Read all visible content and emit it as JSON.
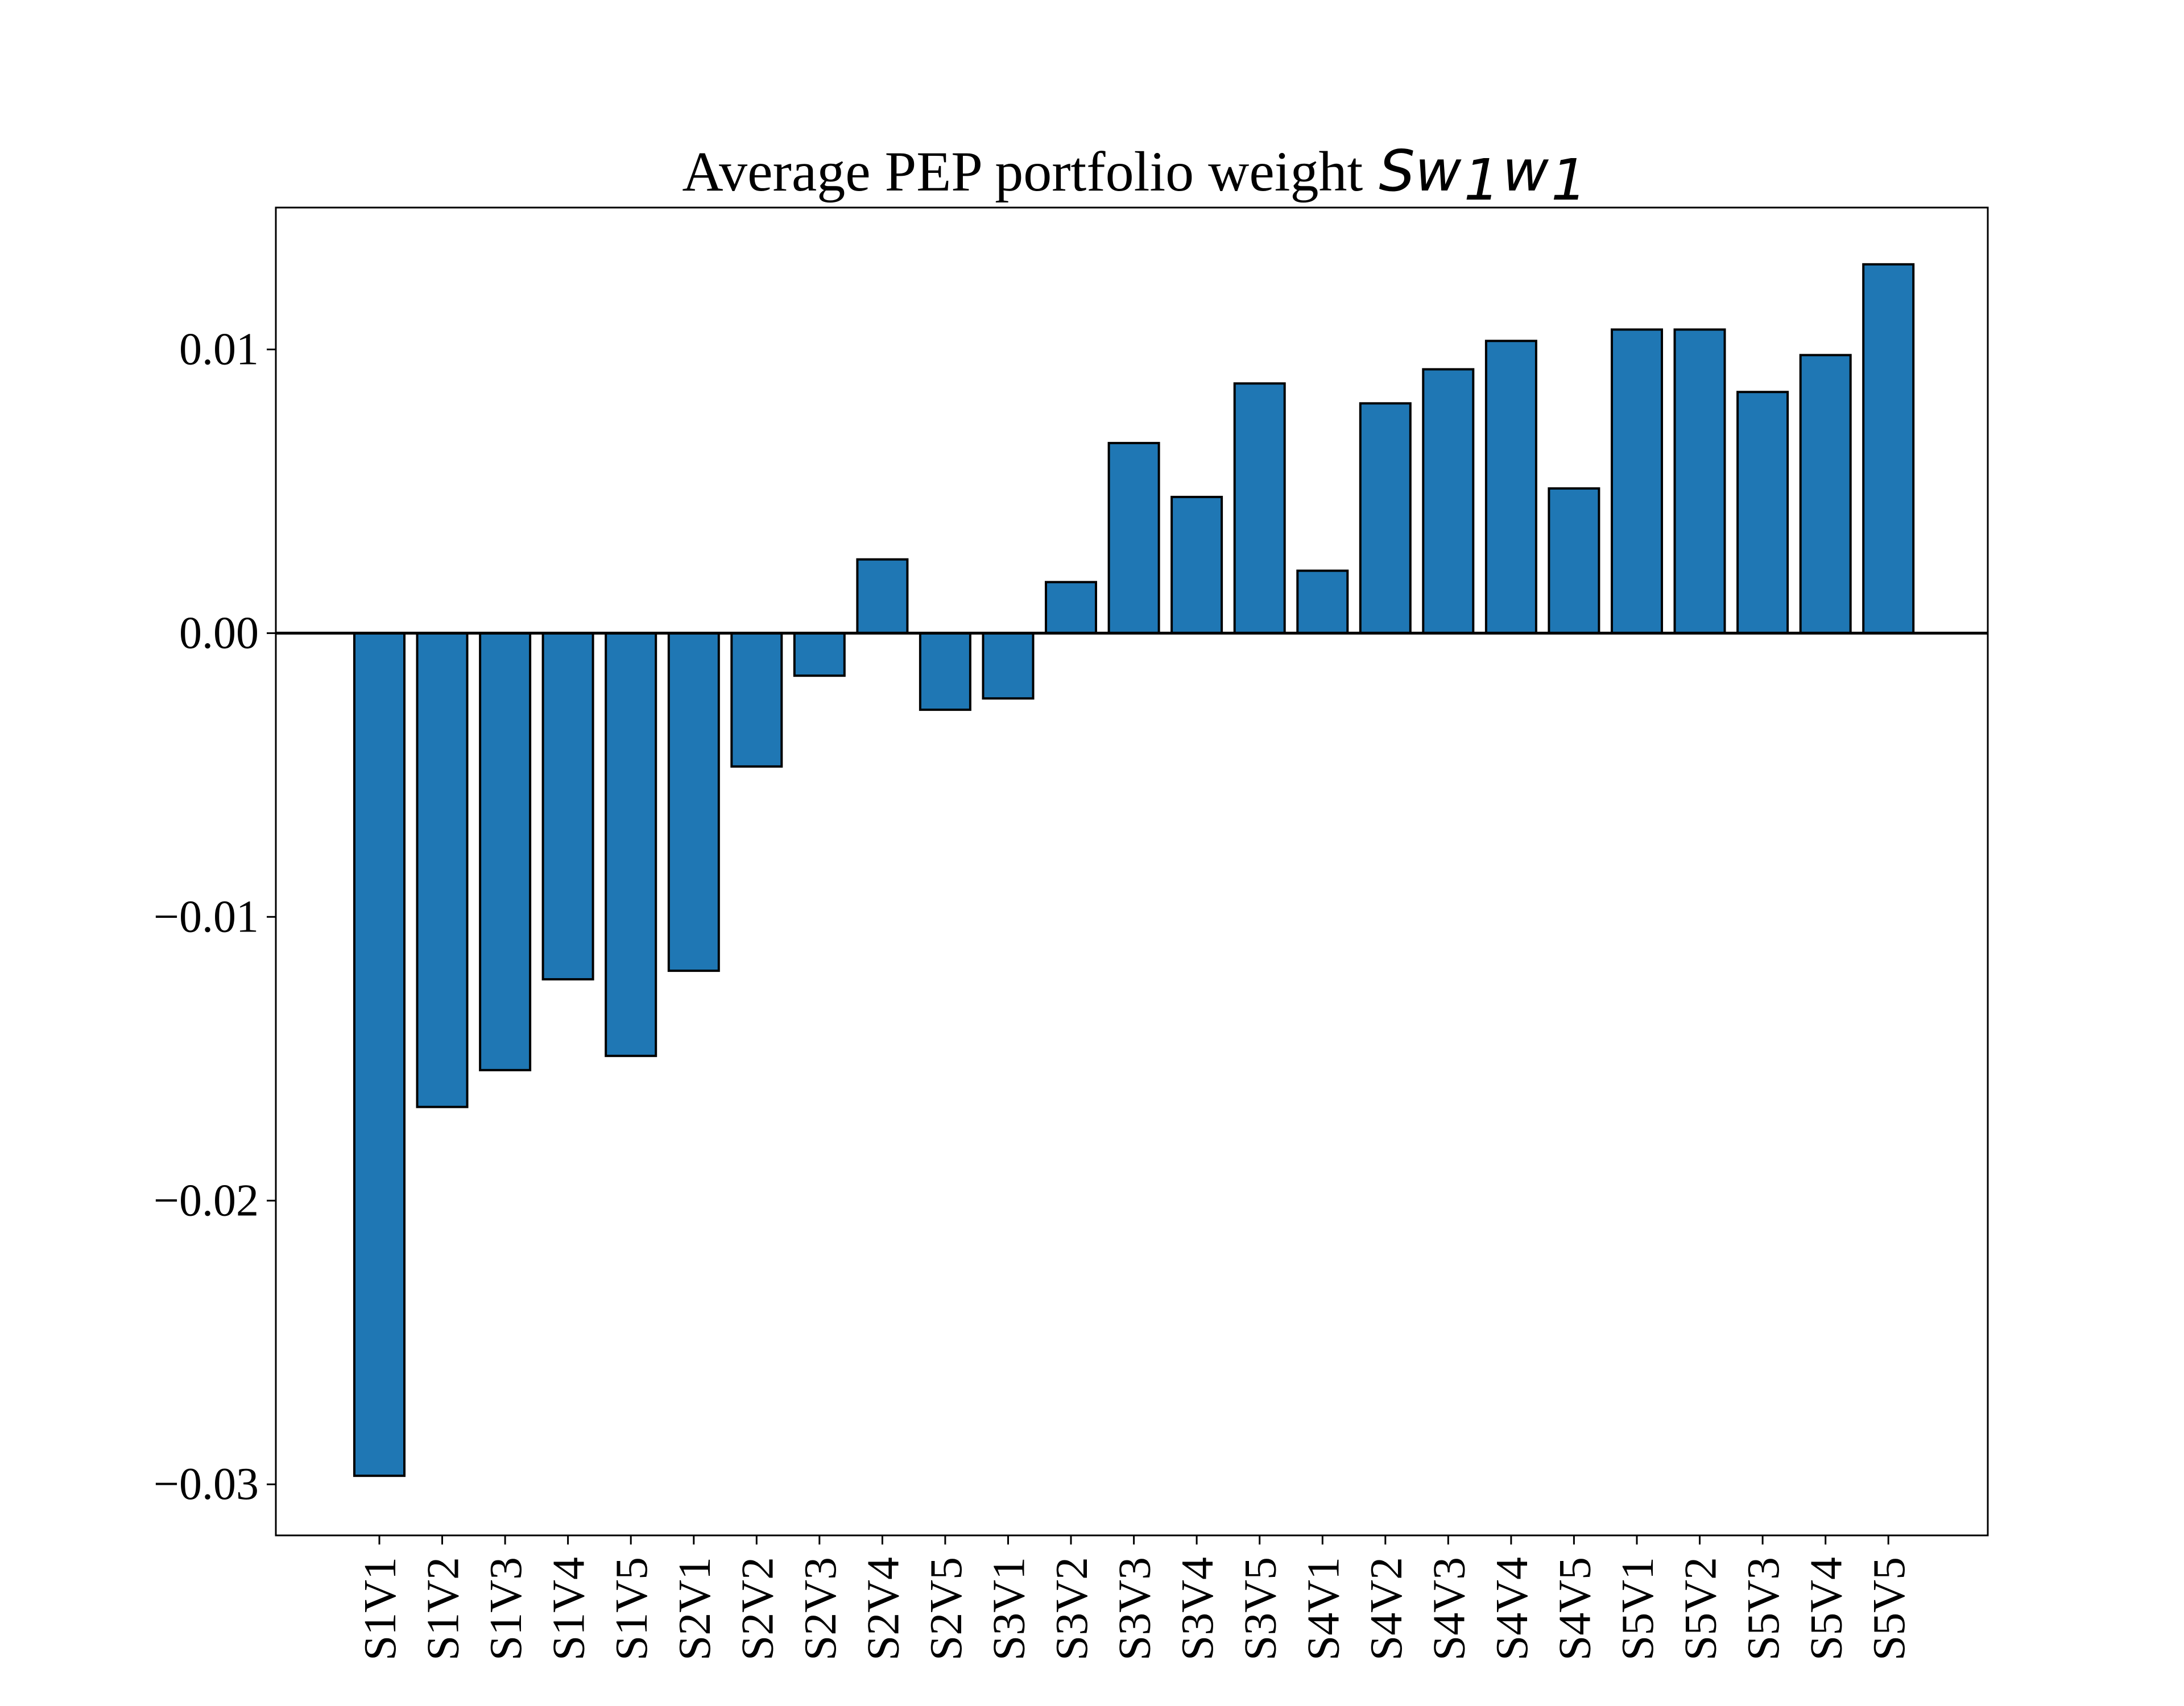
{
  "chart_data": {
    "type": "bar",
    "title": {
      "text": "Average PEP portfolio weight",
      "math_base": "Sw",
      "math_sub1": "1",
      "math_mid": "w",
      "math_sub2": "1"
    },
    "xlabel": "",
    "ylabel": "",
    "categories": [
      "S1V1",
      "S1V2",
      "S1V3",
      "S1V4",
      "S1V5",
      "S2V1",
      "S2V2",
      "S2V3",
      "S2V4",
      "S2V5",
      "S3V1",
      "S3V2",
      "S3V3",
      "S3V4",
      "S3V5",
      "S4V1",
      "S4V2",
      "S4V3",
      "S4V4",
      "S4V5",
      "S5V1",
      "S5V2",
      "S5V3",
      "S5V4",
      "S5V5"
    ],
    "values": [
      -0.0297,
      -0.0167,
      -0.0154,
      -0.0122,
      -0.0149,
      -0.0119,
      -0.0047,
      -0.0015,
      0.0026,
      -0.0027,
      -0.0023,
      0.0018,
      0.0067,
      0.0048,
      0.0088,
      0.0022,
      0.0081,
      0.0093,
      0.0103,
      0.0051,
      0.0107,
      0.0107,
      0.0085,
      0.0098,
      0.013
    ],
    "ylim": [
      -0.0318,
      0.015
    ],
    "yticks": [
      -0.03,
      -0.02,
      -0.01,
      0.0,
      0.01
    ],
    "ytick_labels": [
      "−0.03",
      "−0.02",
      "−0.01",
      "0.00",
      "0.01"
    ],
    "zero_line": true,
    "grid": false,
    "legend": "none",
    "bar_color": "#1f77b4",
    "edge_color": "#000000"
  }
}
